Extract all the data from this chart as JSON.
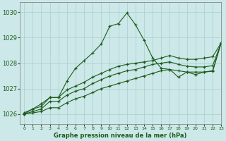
{
  "title": "Graphe pression niveau de la mer (hPa)",
  "bg_color": "#cce8e8",
  "grid_color": "#aacece",
  "line_color": "#1a5c1a",
  "xlim": [
    -0.5,
    23
  ],
  "ylim": [
    1025.6,
    1030.4
  ],
  "yticks": [
    1026,
    1027,
    1028,
    1029,
    1030
  ],
  "xticks": [
    0,
    1,
    2,
    3,
    4,
    5,
    6,
    7,
    8,
    9,
    10,
    11,
    12,
    13,
    14,
    15,
    16,
    17,
    18,
    19,
    20,
    21,
    22,
    23
  ],
  "series_peak": {
    "x": [
      0,
      1,
      2,
      3,
      4,
      5,
      6,
      7,
      8,
      9,
      10,
      11,
      12,
      13,
      14,
      15,
      16,
      17,
      18,
      19,
      20,
      21,
      22,
      23
    ],
    "y": [
      1026.0,
      1026.2,
      1026.4,
      1026.65,
      1026.65,
      1027.3,
      1027.8,
      1028.1,
      1028.4,
      1028.75,
      1029.45,
      1029.55,
      1029.97,
      1029.5,
      1028.9,
      1028.2,
      1027.8,
      1027.75,
      1027.45,
      1027.65,
      1027.55,
      1027.65,
      1027.7,
      1028.8
    ]
  },
  "series_upper": {
    "x": [
      0,
      1,
      2,
      3,
      4,
      5,
      6,
      7,
      8,
      9,
      10,
      11,
      12,
      13,
      14,
      15,
      16,
      17,
      18,
      19,
      20,
      21,
      22,
      23
    ],
    "y": [
      1026.05,
      1026.2,
      1026.3,
      1026.65,
      1026.65,
      1026.95,
      1027.1,
      1027.25,
      1027.45,
      1027.6,
      1027.75,
      1027.88,
      1027.95,
      1028.0,
      1028.05,
      1028.1,
      1028.2,
      1028.3,
      1028.2,
      1028.15,
      1028.15,
      1028.2,
      1028.25,
      1028.8
    ]
  },
  "series_mid": {
    "x": [
      0,
      1,
      2,
      3,
      4,
      5,
      6,
      7,
      8,
      9,
      10,
      11,
      12,
      13,
      14,
      15,
      16,
      17,
      18,
      19,
      20,
      21,
      22,
      23
    ],
    "y": [
      1026.0,
      1026.1,
      1026.2,
      1026.5,
      1026.5,
      1026.75,
      1026.9,
      1027.0,
      1027.2,
      1027.35,
      1027.5,
      1027.6,
      1027.7,
      1027.75,
      1027.85,
      1027.95,
      1028.0,
      1028.05,
      1027.95,
      1027.88,
      1027.85,
      1027.85,
      1027.9,
      1028.8
    ]
  },
  "series_lower": {
    "x": [
      0,
      1,
      2,
      3,
      4,
      5,
      6,
      7,
      8,
      9,
      10,
      11,
      12,
      13,
      14,
      15,
      16,
      17,
      18,
      19,
      20,
      21,
      22,
      23
    ],
    "y": [
      1026.0,
      1026.05,
      1026.1,
      1026.25,
      1026.25,
      1026.45,
      1026.6,
      1026.7,
      1026.85,
      1027.0,
      1027.1,
      1027.2,
      1027.3,
      1027.4,
      1027.5,
      1027.6,
      1027.7,
      1027.75,
      1027.7,
      1027.65,
      1027.65,
      1027.65,
      1027.68,
      1028.8
    ]
  }
}
